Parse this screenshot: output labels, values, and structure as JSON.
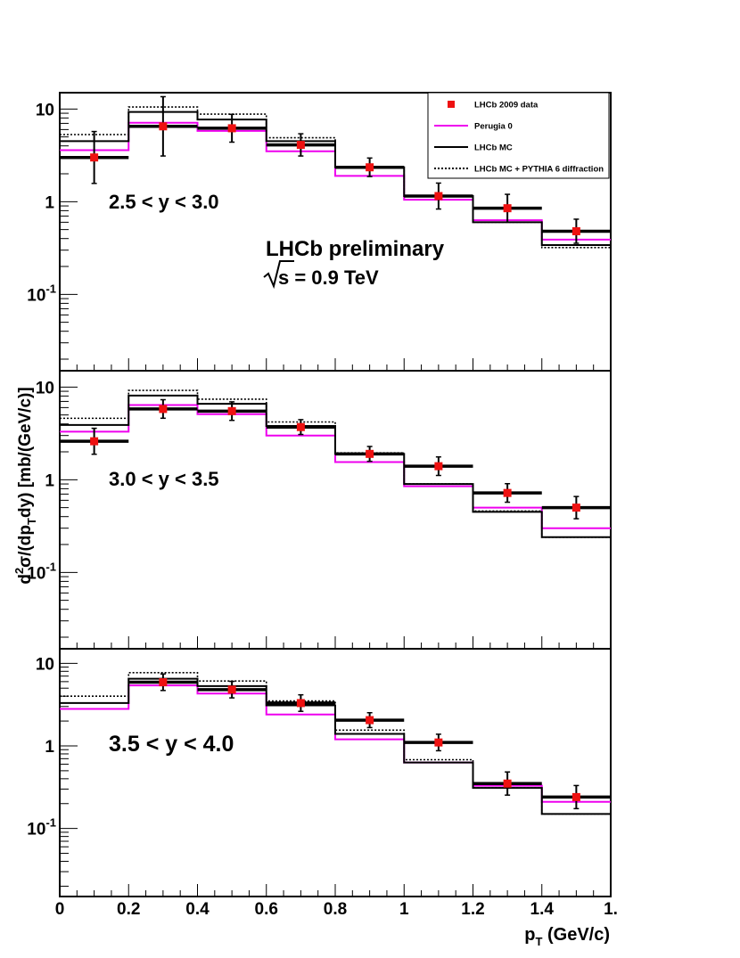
{
  "chart_data": {
    "type": "histogram",
    "xlabel_main": "p",
    "xlabel_sub": "T",
    "xlabel_rest": " (GeV/c)",
    "ylabel": "d²σ/(dp_T dy)   [mb/(GeV/c)]",
    "xlim": [
      0,
      1.6
    ],
    "ylim": [
      0.015,
      15
    ],
    "yscale": "log",
    "x_ticks": [
      {
        "value": 0,
        "label": "0"
      },
      {
        "value": 0.2,
        "label": "0.2"
      },
      {
        "value": 0.4,
        "label": "0.4"
      },
      {
        "value": 0.6,
        "label": "0.6"
      },
      {
        "value": 0.8,
        "label": "0.8"
      },
      {
        "value": 1.0,
        "label": "1"
      },
      {
        "value": 1.2,
        "label": "1.2"
      },
      {
        "value": 1.4,
        "label": "1.4"
      },
      {
        "value": 1.6,
        "label": "1."
      }
    ],
    "y_ticks": [
      {
        "value": 10,
        "label": "10"
      },
      {
        "value": 1,
        "label": "1"
      },
      {
        "value": 0.1,
        "label": "10",
        "sup": "-1"
      }
    ],
    "bin_edges": [
      0,
      0.2,
      0.4,
      0.6,
      0.8,
      1.0,
      1.2,
      1.4,
      1.6
    ],
    "legend": {
      "placement": "top-right",
      "entries": [
        {
          "label": "LHCb 2009 data",
          "style": "marker",
          "color": "#ee1111"
        },
        {
          "label": "Perugia 0",
          "style": "line",
          "color": "#ee00ee"
        },
        {
          "label": "LHCb MC",
          "style": "line",
          "color": "#000000"
        },
        {
          "label": "LHCb MC + PYTHIA 6 diffraction",
          "style": "dotted",
          "color": "#000000"
        }
      ]
    },
    "annotations": {
      "preliminary": "LHCb preliminary",
      "energy": "s = 0.9 TeV"
    },
    "panels": [
      {
        "label": "2.5 < y < 3.0",
        "data": [
          3.0,
          6.5,
          6.2,
          4.1,
          2.35,
          1.15,
          0.85,
          0.48
        ],
        "data_err": [
          0.28,
          0.32,
          0.15,
          0.12,
          0.1,
          0.14,
          0.15,
          0.13
        ],
        "perugia": [
          3.6,
          7.1,
          5.8,
          3.5,
          1.9,
          1.05,
          0.63,
          0.39
        ],
        "lhcbmc": [
          4.5,
          9.3,
          7.7,
          4.5,
          2.35,
          1.15,
          0.6,
          0.34
        ],
        "dotted": [
          5.3,
          10.5,
          8.8,
          4.9,
          2.4,
          1.15,
          0.6,
          0.32
        ]
      },
      {
        "label": "3.0 < y < 3.5",
        "data": [
          2.6,
          5.8,
          5.5,
          3.7,
          1.9,
          1.4,
          0.72,
          0.5
        ],
        "data_err": [
          0.14,
          0.1,
          0.1,
          0.08,
          0.08,
          0.1,
          0.1,
          0.12
        ],
        "perugia": [
          3.3,
          6.4,
          5.1,
          3.0,
          1.55,
          0.85,
          0.5,
          0.3
        ],
        "lhcbmc": [
          3.9,
          8.1,
          6.6,
          3.8,
          1.9,
          0.9,
          0.45,
          0.24
        ],
        "dotted": [
          4.6,
          9.2,
          7.4,
          4.2,
          1.95,
          0.9,
          0.46,
          0.24
        ]
      },
      {
        "label": "3.5 < y < 4.0",
        "data": [
          null,
          5.9,
          4.8,
          3.3,
          2.05,
          1.1,
          0.35,
          0.24
        ],
        "data_err": [
          0,
          0.1,
          0.1,
          0.1,
          0.09,
          0.1,
          0.14,
          0.14
        ],
        "perugia": [
          2.8,
          5.4,
          4.3,
          2.4,
          1.2,
          0.63,
          0.33,
          0.21
        ],
        "lhcbmc": [
          3.3,
          6.5,
          5.3,
          3.1,
          1.4,
          0.63,
          0.31,
          0.15
        ],
        "dotted": [
          4.0,
          7.7,
          6.1,
          3.5,
          1.55,
          0.68,
          0.31,
          0.15
        ]
      }
    ]
  }
}
